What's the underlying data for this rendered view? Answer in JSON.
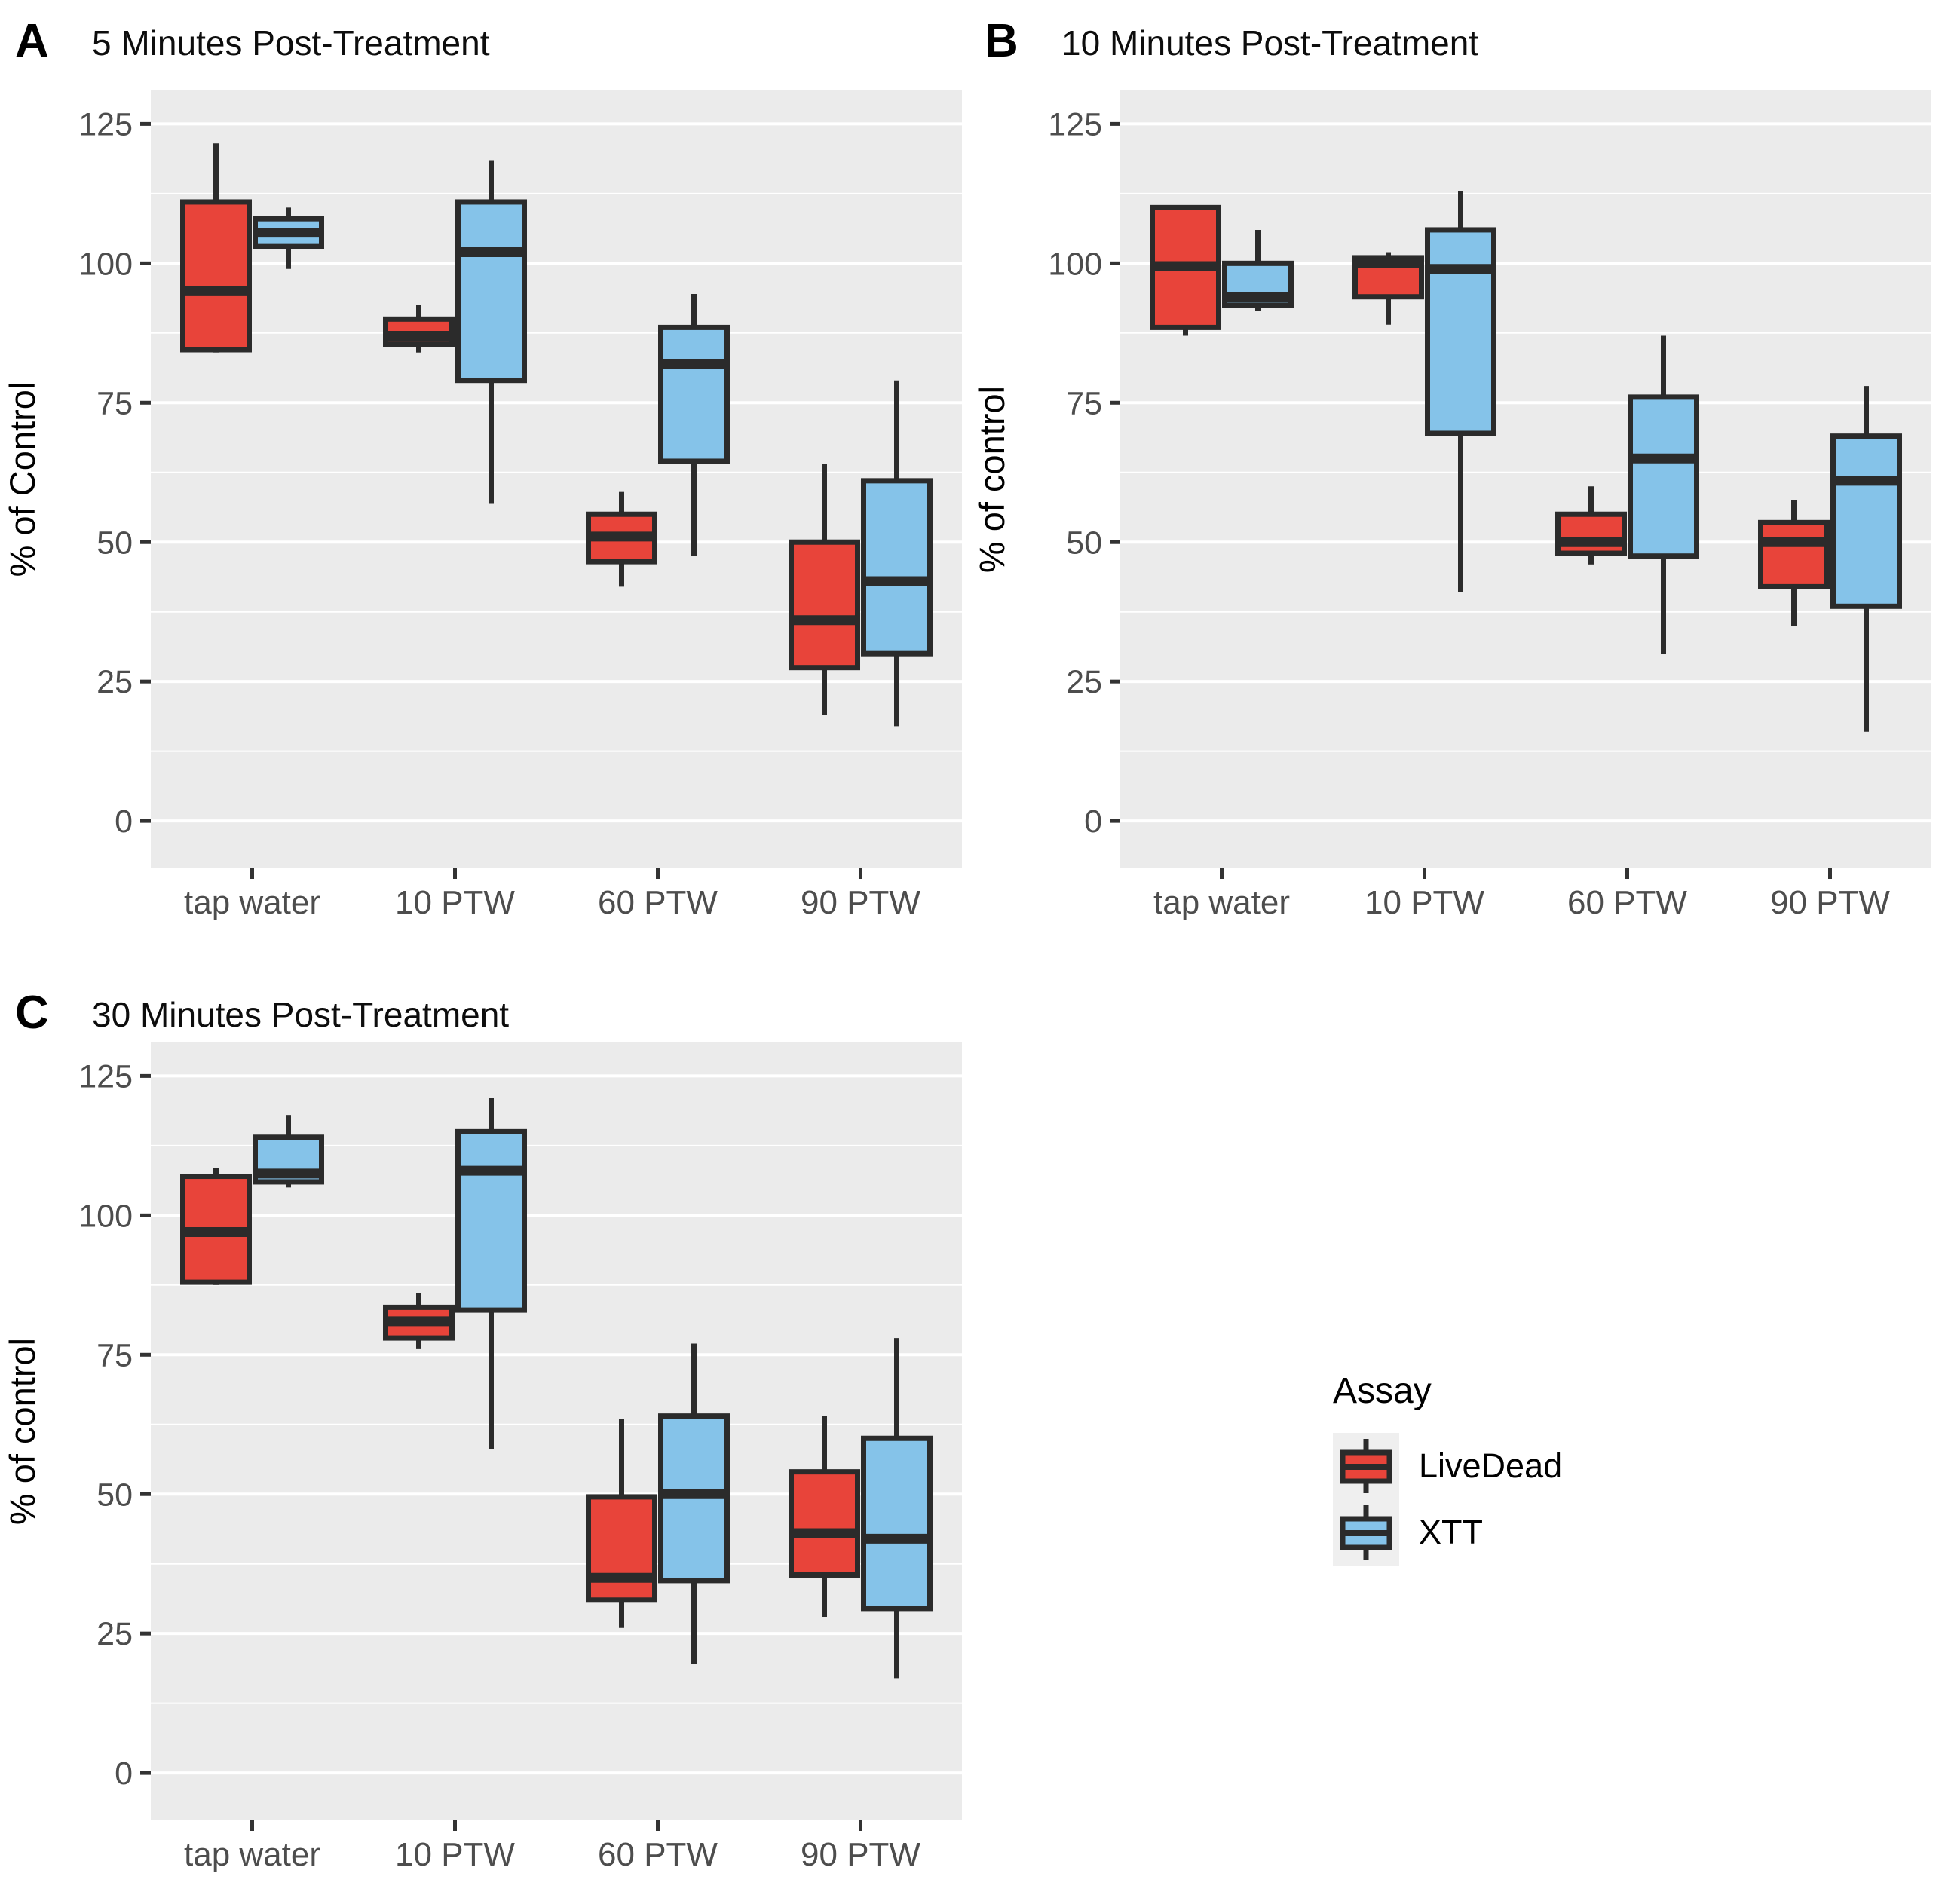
{
  "figure_title": "",
  "colors": {
    "panel_background": "#EBEBEB",
    "gridline_major": "#FFFFFF",
    "gridline_minor": "#FFFFFF",
    "box_outline": "#2B2B2B",
    "axis_text": "#4D4D4D",
    "tick_mark": "#333333",
    "title_text": "#0D0D0D",
    "legend_key_background": "#EFEFEF",
    "livedead_fill": "#E8443A",
    "xtt_fill": "#85C3E9"
  },
  "legend": {
    "title": "Assay",
    "position": "bottom-right-quadrant",
    "entries": [
      {
        "label": "LiveDead",
        "fill": "#E8443A"
      },
      {
        "label": "XTT",
        "fill": "#85C3E9"
      }
    ]
  },
  "chart_data": [
    {
      "type": "boxplot",
      "panel_label": "A",
      "title": "5 Minutes Post-Treatment",
      "xlabel": "",
      "ylabel": "% of Control",
      "categories": [
        "tap water",
        "10 PTW",
        "60 PTW",
        "90 PTW"
      ],
      "yticks": [
        0,
        25,
        50,
        75,
        100,
        125
      ],
      "minor_gridlines": [
        12.5,
        37.5,
        62.5,
        87.5,
        112.5
      ],
      "ylim": [
        -8.5,
        131
      ],
      "grid": "white major+minor on grey panel",
      "legend_position": "none",
      "series": [
        {
          "name": "LiveDead",
          "fill": "#E8443A",
          "boxes": [
            {
              "category": "tap water",
              "min": 84,
              "q1": 84.5,
              "med": 95,
              "q3": 111,
              "max": 121.5
            },
            {
              "category": "10 PTW",
              "min": 84,
              "q1": 85.5,
              "med": 87,
              "q3": 90,
              "max": 92.5
            },
            {
              "category": "60 PTW",
              "min": 42,
              "q1": 46.5,
              "med": 51,
              "q3": 55,
              "max": 59
            },
            {
              "category": "90 PTW",
              "min": 19,
              "q1": 27.5,
              "med": 36,
              "q3": 50,
              "max": 64
            }
          ]
        },
        {
          "name": "XTT",
          "fill": "#85C3E9",
          "boxes": [
            {
              "category": "tap water",
              "min": 99,
              "q1": 103,
              "med": 105.5,
              "q3": 108,
              "max": 110
            },
            {
              "category": "10 PTW",
              "min": 57,
              "q1": 79,
              "med": 102,
              "q3": 111,
              "max": 118.5
            },
            {
              "category": "60 PTW",
              "min": 47.5,
              "q1": 64.5,
              "med": 82,
              "q3": 88.5,
              "max": 94.5
            },
            {
              "category": "90 PTW",
              "min": 17,
              "q1": 30,
              "med": 43,
              "q3": 61,
              "max": 79
            }
          ]
        }
      ]
    },
    {
      "type": "boxplot",
      "panel_label": "B",
      "title": "10 Minutes Post-Treatment",
      "xlabel": "",
      "ylabel": "% of control",
      "categories": [
        "tap water",
        "10 PTW",
        "60 PTW",
        "90 PTW"
      ],
      "yticks": [
        0,
        25,
        50,
        75,
        100,
        125
      ],
      "minor_gridlines": [
        12.5,
        37.5,
        62.5,
        87.5,
        112.5
      ],
      "ylim": [
        -8.5,
        131
      ],
      "grid": "white major+minor on grey panel",
      "legend_position": "none",
      "series": [
        {
          "name": "LiveDead",
          "fill": "#E8443A",
          "boxes": [
            {
              "category": "tap water",
              "min": 87,
              "q1": 88.5,
              "med": 99.5,
              "q3": 110,
              "max": 110
            },
            {
              "category": "10 PTW",
              "min": 89,
              "q1": 94,
              "med": 100,
              "q3": 101,
              "max": 102
            },
            {
              "category": "60 PTW",
              "min": 46,
              "q1": 48,
              "med": 50,
              "q3": 55,
              "max": 60
            },
            {
              "category": "90 PTW",
              "min": 35,
              "q1": 42,
              "med": 50,
              "q3": 53.5,
              "max": 57.5
            }
          ]
        },
        {
          "name": "XTT",
          "fill": "#85C3E9",
          "boxes": [
            {
              "category": "tap water",
              "min": 91.5,
              "q1": 92.5,
              "med": 94,
              "q3": 100,
              "max": 106
            },
            {
              "category": "10 PTW",
              "min": 41,
              "q1": 69.5,
              "med": 99,
              "q3": 106,
              "max": 113
            },
            {
              "category": "60 PTW",
              "min": 30,
              "q1": 47.5,
              "med": 65,
              "q3": 76,
              "max": 87
            },
            {
              "category": "90 PTW",
              "min": 16,
              "q1": 38.5,
              "med": 61,
              "q3": 69,
              "max": 78
            }
          ]
        }
      ]
    },
    {
      "type": "boxplot",
      "panel_label": "C",
      "title": "30 Minutes Post-Treatment",
      "xlabel": "",
      "ylabel": "% of control",
      "categories": [
        "tap water",
        "10 PTW",
        "60 PTW",
        "90 PTW"
      ],
      "yticks": [
        0,
        25,
        50,
        75,
        100,
        125
      ],
      "minor_gridlines": [
        12.5,
        37.5,
        62.5,
        87.5,
        112.5
      ],
      "ylim": [
        -8.5,
        131
      ],
      "grid": "white major+minor on grey panel",
      "legend_position": "none",
      "series": [
        {
          "name": "LiveDead",
          "fill": "#E8443A",
          "boxes": [
            {
              "category": "tap water",
              "min": 87.5,
              "q1": 88,
              "med": 97,
              "q3": 107,
              "max": 108.5
            },
            {
              "category": "10 PTW",
              "min": 76,
              "q1": 78,
              "med": 81,
              "q3": 83.5,
              "max": 86
            },
            {
              "category": "60 PTW",
              "min": 26,
              "q1": 31,
              "med": 35,
              "q3": 49.5,
              "max": 63.5
            },
            {
              "category": "90 PTW",
              "min": 28,
              "q1": 35.5,
              "med": 43,
              "q3": 54,
              "max": 64
            }
          ]
        },
        {
          "name": "XTT",
          "fill": "#85C3E9",
          "boxes": [
            {
              "category": "tap water",
              "min": 105,
              "q1": 106,
              "med": 107.5,
              "q3": 114,
              "max": 118
            },
            {
              "category": "10 PTW",
              "min": 58,
              "q1": 83,
              "med": 108,
              "q3": 115,
              "max": 121
            },
            {
              "category": "60 PTW",
              "min": 19.5,
              "q1": 34.5,
              "med": 50,
              "q3": 64,
              "max": 77
            },
            {
              "category": "90 PTW",
              "min": 17,
              "q1": 29.5,
              "med": 42,
              "q3": 60,
              "max": 78
            }
          ]
        }
      ]
    }
  ]
}
